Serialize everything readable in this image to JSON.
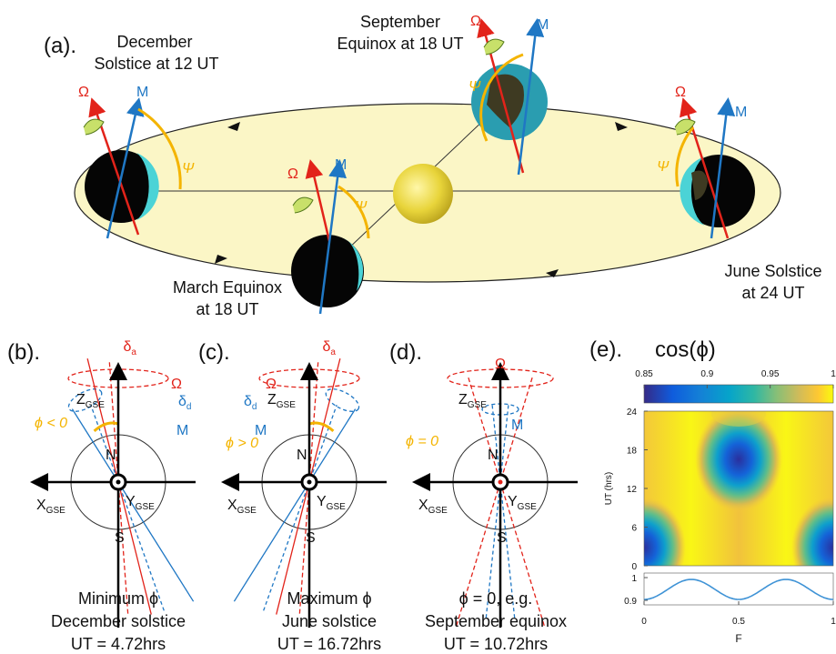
{
  "panel_a": {
    "label": "(a).",
    "december": [
      "December",
      "Solstice at 12 UT"
    ],
    "september": [
      "September",
      "Equinox at 18 UT"
    ],
    "march": [
      "March Equinox",
      "at 18 UT"
    ],
    "june": [
      "June Solstice",
      "at 24 UT"
    ],
    "omega": "Ω",
    "m": "M",
    "psi": "Ψ"
  },
  "axes_symbols": {
    "z": "Z",
    "x": "X",
    "y": "Y",
    "gse": "GSE",
    "n": "N",
    "s": "S",
    "delta": "δ",
    "a": "a",
    "d": "d",
    "omega": "Ω",
    "m": "M"
  },
  "panel_b": {
    "label": "(b).",
    "phi": "ϕ < 0",
    "caption": [
      "Minimum  ϕ",
      "December solstice",
      "UT = 4.72hrs"
    ]
  },
  "panel_c": {
    "label": "(c).",
    "phi": "ϕ > 0",
    "caption": [
      "Maximum  ϕ",
      "June solstice",
      "UT = 16.72hrs"
    ]
  },
  "panel_d": {
    "label": "(d).",
    "phi": "ϕ = 0",
    "caption": [
      "ϕ = 0,       e.g.",
      "September equinox",
      "UT = 10.72hrs"
    ]
  },
  "panel_e": {
    "label": "(e).",
    "title": "cos(ϕ)",
    "colorbar_ticks": [
      0.85,
      0.9,
      0.95,
      1
    ],
    "colorbar_lim": [
      0.85,
      1
    ],
    "ylabel": "UT (hrs)",
    "yticks": [
      0,
      6,
      12,
      18,
      24
    ],
    "ylim": [
      0,
      24
    ],
    "line_yticks": [
      0.9,
      1
    ],
    "line_ylim": [
      0.88,
      1.02
    ],
    "xticks": [
      0,
      0.5,
      1
    ],
    "xlim": [
      0,
      1
    ],
    "xlabel": "F"
  }
}
